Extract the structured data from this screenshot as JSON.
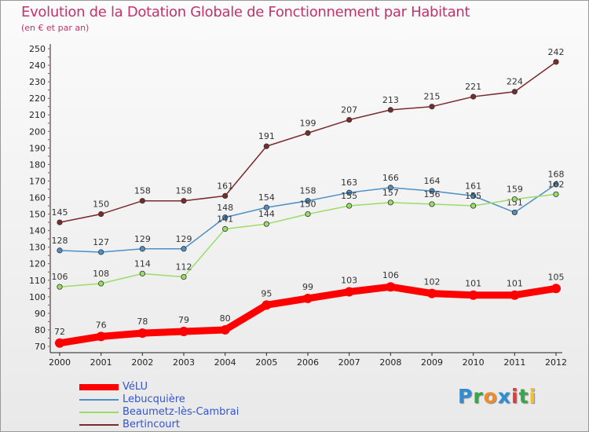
{
  "chart_data": {
    "type": "line",
    "title": "Evolution de la Dotation Globale de Fonctionnement par Habitant",
    "subtitle": "(en € et par an)",
    "xlabel": "",
    "ylabel": "",
    "categories": [
      "2000",
      "2001",
      "2002",
      "2003",
      "2004",
      "2005",
      "2006",
      "2007",
      "2008",
      "2009",
      "2010",
      "2011",
      "2012"
    ],
    "ylim": [
      70,
      250
    ],
    "yticks": [
      70,
      80,
      90,
      100,
      110,
      120,
      130,
      140,
      150,
      160,
      170,
      180,
      190,
      200,
      210,
      220,
      230,
      240,
      250
    ],
    "grid": false,
    "legend_position": "bottom-left",
    "series": [
      {
        "name": "VéLU",
        "color": "#ff0000",
        "values": [
          72,
          76,
          78,
          79,
          80,
          95,
          99,
          103,
          106,
          102,
          101,
          101,
          105
        ]
      },
      {
        "name": "Lebucquière",
        "color": "#4d8fc6",
        "values": [
          128,
          127,
          129,
          129,
          148,
          154,
          158,
          163,
          166,
          164,
          161,
          151,
          168
        ]
      },
      {
        "name": "Beaumetz-lès-Cambrai",
        "color": "#99dd66",
        "values": [
          106,
          108,
          114,
          112,
          141,
          144,
          150,
          155,
          157,
          156,
          155,
          159,
          162
        ]
      },
      {
        "name": "Bertincourt",
        "color": "#7a2b2b",
        "values": [
          145,
          150,
          158,
          158,
          161,
          191,
          199,
          207,
          213,
          215,
          221,
          224,
          242
        ]
      }
    ]
  },
  "brand": {
    "letters": [
      "P",
      "r",
      "o",
      "x",
      "i",
      "t",
      "i"
    ],
    "colors": [
      "#2a8fd6",
      "#3aa54a",
      "#f28c28",
      "#2a8fd6",
      "#e23b3b",
      "#3aa54a",
      "#f2c028"
    ]
  }
}
